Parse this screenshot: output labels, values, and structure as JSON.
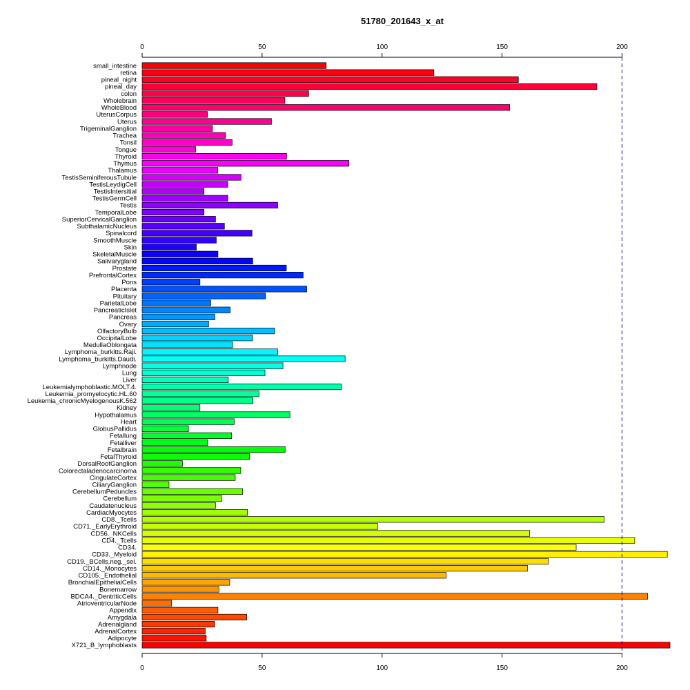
{
  "chart_data": {
    "type": "bar",
    "orientation": "horizontal",
    "title": "51780_201643_x_at",
    "xlabel": "",
    "ylabel": "",
    "xlim": [
      0,
      220
    ],
    "x_ticks": [
      0,
      50,
      100,
      150,
      200
    ],
    "x_tick_labels": [
      "0",
      "50",
      "100",
      "150",
      "200"
    ],
    "reference_line": 200,
    "grid": false,
    "legend": "none",
    "bar_border_color": "#000000",
    "reference_line_color": "#000080",
    "color_scheme": "rainbow (red to magenta to blue to green to yellow to red, top to bottom)",
    "categories": [
      "small_intestine",
      "retina",
      "pineal_night",
      "pineal_day",
      "colon",
      "Wholebrain",
      "WholeBlood",
      "UterusCorpus",
      "Uterus",
      "TrigeminalGanglion",
      "Trachea",
      "Tonsil",
      "Tongue",
      "Thyroid",
      "Thymus",
      "Thalamus",
      "TestisSeminiferousTubule",
      "TestisLeydigCell",
      "TestisIntersitial",
      "TestisGermCell",
      "Testis",
      "TemporalLobe",
      "SuperiorCervicalGanglion",
      "SubthalamicNucleus",
      "Spinalcord",
      "SmoothMuscle",
      "Skin",
      "SkeletalMuscle",
      "Salivarygland",
      "Prostate",
      "PrefrontalCortex",
      "Pons",
      "Placenta",
      "Pituitary",
      "ParietalLobe",
      "PancreaticIslet",
      "Pancreas",
      "Ovary",
      "OlfactoryBulb",
      "OccipitalLobe",
      "MedullaOblongata",
      "Lymphoma_burkitts.Raji.",
      "Lymphoma_burkitts.Daudi.",
      "Lymphnode",
      "Lung",
      "Liver",
      "Leukemialymphoblastic.MOLT.4.",
      "Leukemia_promyelocytic.HL.60",
      "Leukemia_chronicMyelogenousK.562",
      "Kidney",
      "Hypothalamus",
      "Heart",
      "GlobusPallidus",
      "Fetallung",
      "Fetalliver",
      "Fetalbrain",
      "FetalThyroid",
      "DorsalRootGanglion",
      "Colorectaladenocarcinoma",
      "CingulateCortex",
      "CiliaryGanglion",
      "CerebellumPeduncles",
      "Cerebellum",
      "Caudatenucleus",
      "CardiacMyocytes",
      "CD8._Tcells",
      "CD71._EarlyErythroid",
      "CD56._NKCells",
      "CD4._Tcells",
      "CD34.",
      "CD33._Myeloid",
      "CD19._BCells.neg._sel.",
      "CD14._Monocytes",
      "CD105._Endothelial",
      "BronchialEpithelialCells",
      "Bonemarrow",
      "BDCA4._DentriticCells",
      "AtrioventricularNode",
      "Appendix",
      "Amygdala",
      "Adrenalgland",
      "AdrenalCortex",
      "Adipocyte",
      "X721_B_lymphoblasts"
    ],
    "values": [
      76.7,
      121.6,
      156.8,
      189.5,
      69.4,
      59.5,
      153.2,
      27.2,
      53.9,
      29.3,
      34.7,
      37.5,
      22.3,
      60.2,
      86.2,
      31.5,
      41.2,
      35.7,
      25.8,
      35.7,
      56.5,
      25.8,
      30.6,
      34.3,
      45.8,
      30.9,
      22.6,
      31.6,
      46.1,
      60.1,
      67.1,
      24.1,
      68.6,
      51.4,
      28.6,
      36.7,
      30.3,
      27.7,
      55.2,
      46.0,
      37.7,
      56.5,
      84.6,
      58.7,
      51.2,
      35.9,
      83.0,
      48.7,
      46.2,
      24.1,
      61.6,
      38.4,
      19.3,
      37.3,
      27.3,
      59.6,
      44.8,
      16.8,
      41.1,
      38.8,
      11.2,
      41.9,
      33.2,
      30.6,
      43.9,
      192.6,
      98.2,
      161.5,
      205.3,
      180.9,
      218.9,
      169.3,
      160.6,
      126.7,
      36.5,
      32.0,
      210.7,
      12.3,
      31.6,
      43.6,
      30.2,
      26.3,
      26.7,
      220.0
    ]
  }
}
